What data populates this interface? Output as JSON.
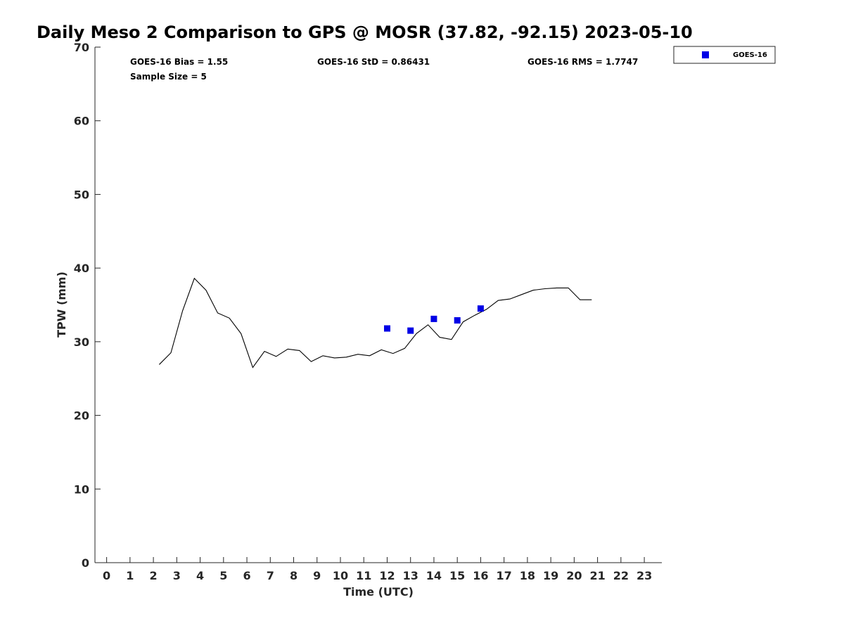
{
  "chart_data": {
    "type": "line",
    "title": "Daily Meso 2 Comparison to GPS @ MOSR (37.82, -92.15) 2023-05-10",
    "xlabel": "Time (UTC)",
    "ylabel": "TPW (mm)",
    "xlim": [
      -0.5,
      23.75
    ],
    "ylim": [
      0,
      70
    ],
    "xticks": [
      "0",
      "1",
      "2",
      "3",
      "4",
      "5",
      "6",
      "7",
      "8",
      "9",
      "10",
      "11",
      "12",
      "13",
      "14",
      "15",
      "16",
      "17",
      "18",
      "19",
      "20",
      "21",
      "22",
      "23"
    ],
    "yticks": [
      "0",
      "10",
      "20",
      "30",
      "40",
      "50",
      "60",
      "70"
    ],
    "grid": false,
    "legend_position": "outside top-right",
    "stats": {
      "bias": "GOES-16 Bias = 1.55",
      "std": "GOES-16 StD = 0.86431",
      "rms": "GOES-16 RMS = 1.7747",
      "sample": "Sample Size = 5"
    },
    "gps_series": {
      "x": [
        2.25,
        2.75,
        3.25,
        3.75,
        4.25,
        4.75,
        5.25,
        5.75,
        6.25,
        6.75,
        7.25,
        7.75,
        8.25,
        8.75,
        9.25,
        9.75,
        10.25,
        10.75,
        11.25,
        11.75,
        12.25,
        12.75,
        13.25,
        13.75,
        14.25,
        14.75,
        15.25,
        15.75,
        16.25,
        16.75,
        17.25,
        17.75,
        18.25,
        18.75,
        19.25,
        19.75,
        20.25,
        20.75
      ],
      "y": [
        26.9,
        28.5,
        34.2,
        38.6,
        37.0,
        33.9,
        33.2,
        31.1,
        26.5,
        28.7,
        28.0,
        29.0,
        28.8,
        27.3,
        28.1,
        27.8,
        27.9,
        28.3,
        28.1,
        28.9,
        28.4,
        29.1,
        31.1,
        32.3,
        30.6,
        30.3,
        32.7,
        33.6,
        34.4,
        35.6,
        35.8,
        36.4,
        37.0,
        37.2,
        37.3,
        37.3,
        35.7,
        35.7
      ],
      "color": "#000000"
    },
    "series": [
      {
        "name": "GOES-16",
        "x": [
          12.0,
          13.0,
          14.0,
          15.0,
          16.0
        ],
        "y": [
          31.8,
          31.5,
          33.1,
          32.9,
          34.5
        ],
        "color": "#0000e6",
        "marker": "square"
      }
    ]
  }
}
